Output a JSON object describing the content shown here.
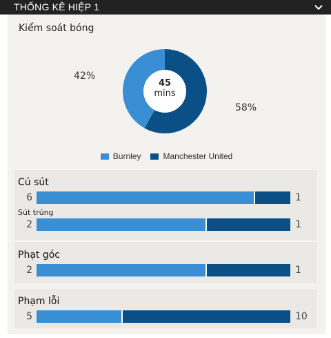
{
  "header": {
    "title": "THỐNG KÊ HIỆP 1",
    "toggle_icon": "chevron-down-icon"
  },
  "colors": {
    "home": "#3a8ed3",
    "away": "#0a4f86",
    "header_bg": "#222222",
    "panel_bg": "#f3f2ef"
  },
  "possession": {
    "title": "Kiểm soát bóng",
    "home_percent": 42,
    "away_percent": 58,
    "home_label": "42%",
    "away_label": "58%",
    "center_number": "45",
    "center_unit": "mins"
  },
  "legend": {
    "home": "Burnley",
    "away": "Manchester United"
  },
  "stats": {
    "shots": {
      "title": "Cú sút",
      "home": 6,
      "away": 1
    },
    "shots_on_target": {
      "title": "Sút trúng",
      "home": 2,
      "away": 1
    },
    "corners": {
      "title": "Phạt góc",
      "home": 2,
      "away": 1
    },
    "fouls": {
      "title": "Phạm lỗi",
      "home": 5,
      "away": 10
    }
  }
}
